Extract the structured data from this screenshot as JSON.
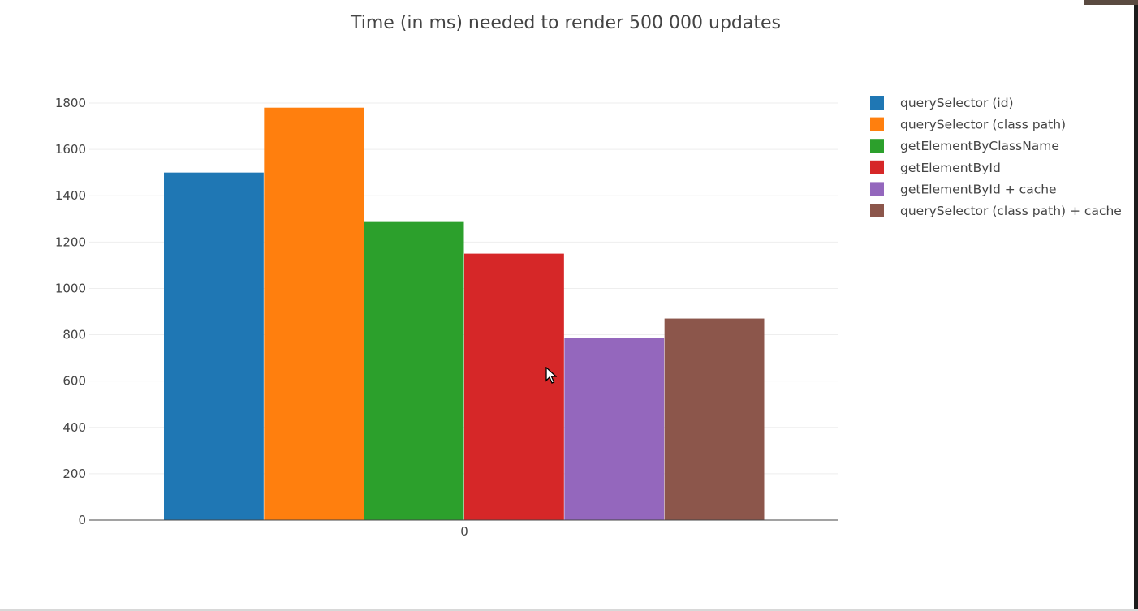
{
  "chart_data": {
    "type": "bar",
    "title": "Time (in ms) needed to render 500 000 updates",
    "categories": [
      "0"
    ],
    "series": [
      {
        "name": "querySelector (id)",
        "values": [
          1500
        ],
        "color": "#1f77b4"
      },
      {
        "name": "querySelector (class path)",
        "values": [
          1780
        ],
        "color": "#ff7f0e"
      },
      {
        "name": "getElementByClassName",
        "values": [
          1290
        ],
        "color": "#2ca02c"
      },
      {
        "name": "getElementById",
        "values": [
          1150
        ],
        "color": "#d62728"
      },
      {
        "name": "getElementById + cache",
        "values": [
          785
        ],
        "color": "#9467bd"
      },
      {
        "name": "querySelector (class path) + cache",
        "values": [
          870
        ],
        "color": "#8c564b"
      }
    ],
    "ylim": [
      0,
      1800
    ],
    "yticks": [
      0,
      200,
      400,
      600,
      800,
      1000,
      1200,
      1400,
      1600,
      1800
    ],
    "grid": true,
    "legend_position": "right",
    "xlabel": "",
    "ylabel": ""
  }
}
